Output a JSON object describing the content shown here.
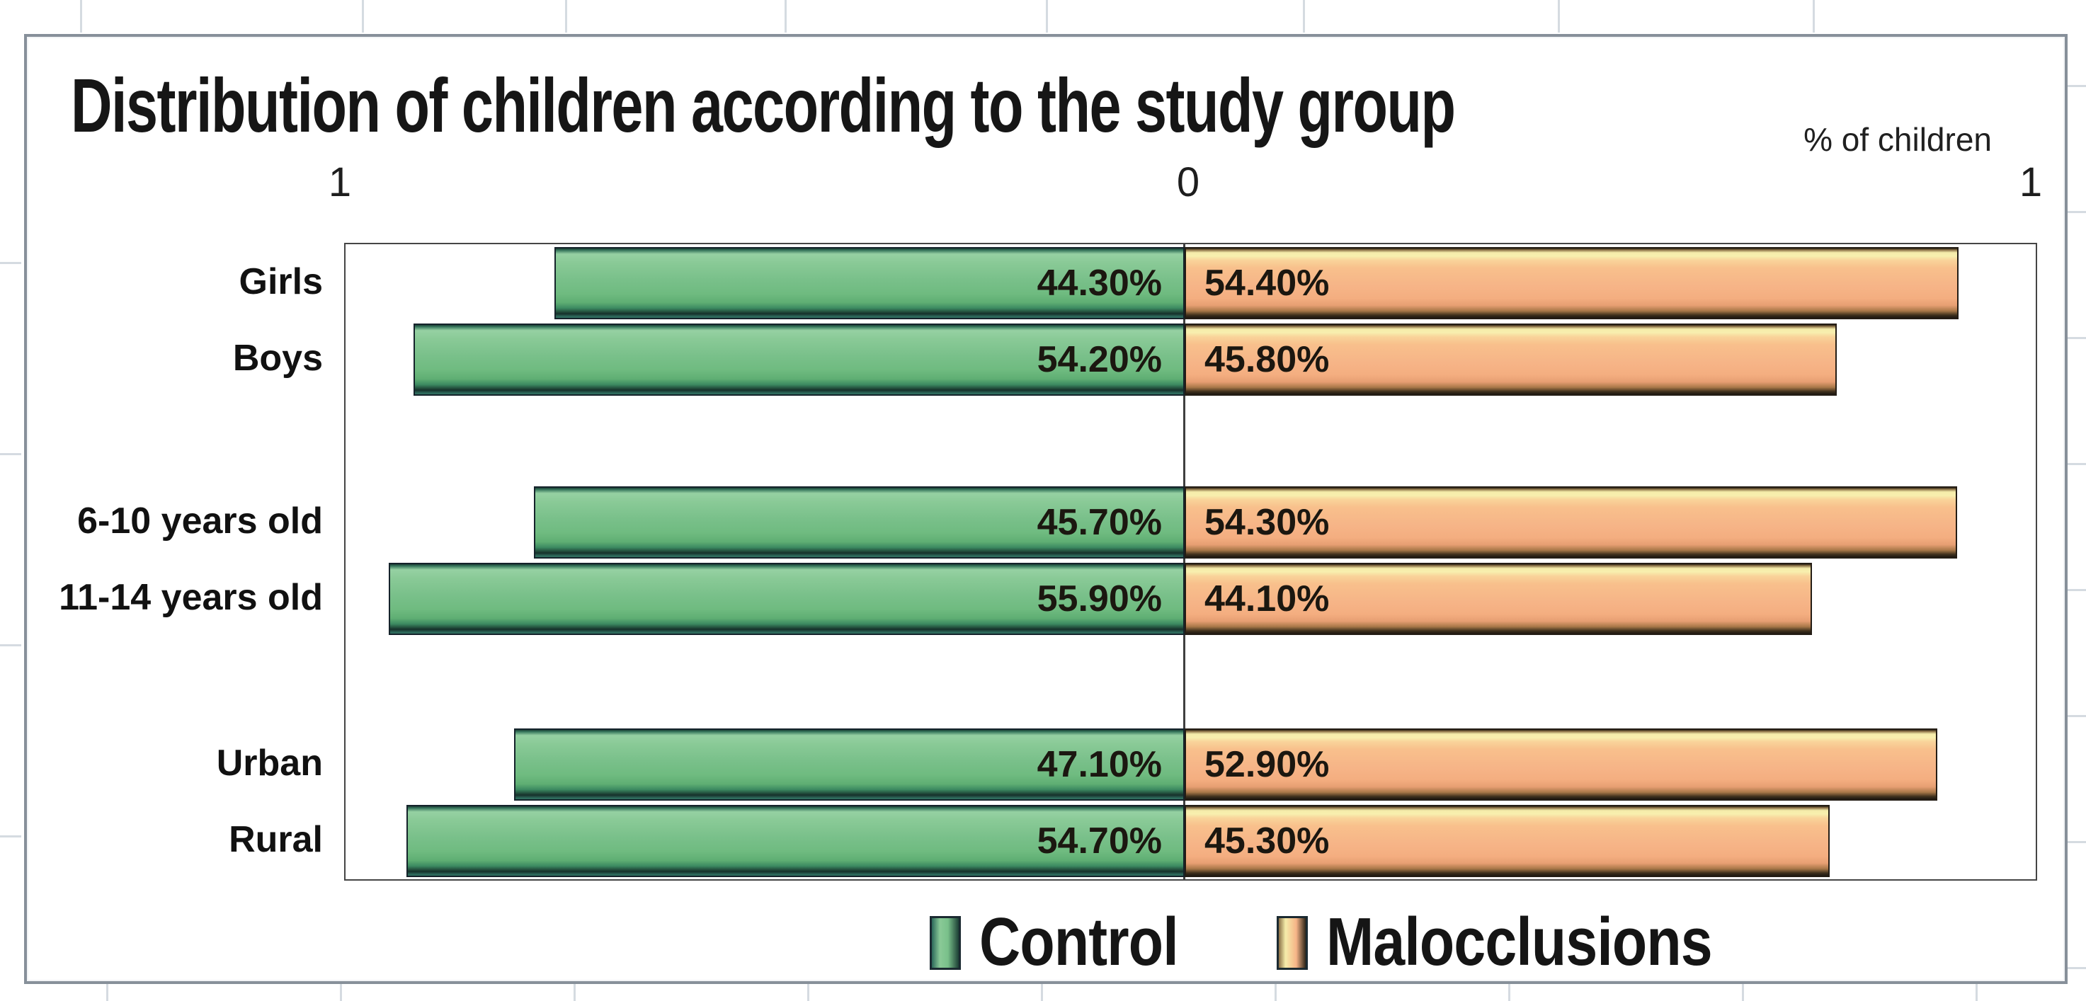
{
  "chart_data": {
    "type": "bar",
    "orientation": "horizontal-diverging",
    "title": "Distribution of children according to the study group",
    "axis_unit_label": "% of children",
    "axis_ticks": {
      "left": "1",
      "center": "0",
      "right": "1"
    },
    "axis_range_displayed": [
      0,
      1
    ],
    "grid": false,
    "legend_position": "bottom",
    "categories": [
      "Girls",
      "Boys",
      "6-10 years old",
      "11-14 years old",
      "Urban",
      "Rural"
    ],
    "series": [
      {
        "name": "Control",
        "side": "left",
        "color": "#74BD85",
        "values": [
          44.3,
          54.2,
          45.7,
          55.9,
          47.1,
          54.7
        ],
        "value_labels": [
          "44.30%",
          "54.20%",
          "45.70%",
          "55.90%",
          "47.10%",
          "54.70%"
        ]
      },
      {
        "name": "Malocclusions",
        "side": "right",
        "color": "#F5B083",
        "values": [
          54.4,
          45.8,
          54.3,
          44.1,
          52.9,
          45.3
        ],
        "value_labels": [
          "54.40%",
          "45.80%",
          "54.30%",
          "44.10%",
          "52.90%",
          "45.30%"
        ]
      }
    ],
    "colors": {
      "control_fill": "#74BD85",
      "malocclusions_fill": "#F5B083",
      "plot_border": "#454545",
      "text": "#1A1A1A"
    }
  }
}
